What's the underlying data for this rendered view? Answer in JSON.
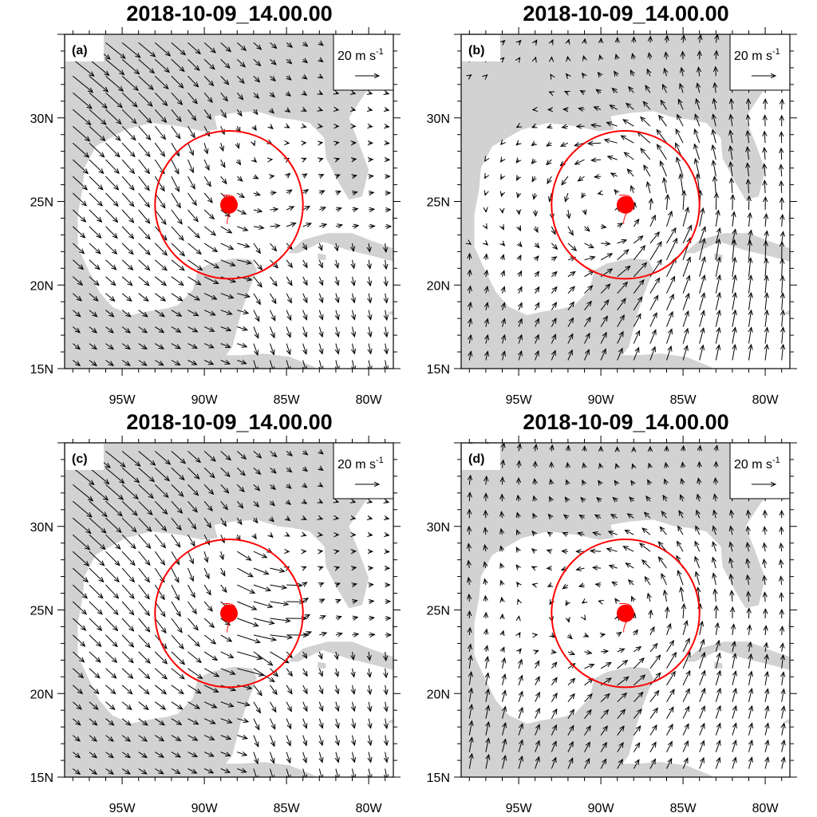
{
  "panels": [
    {
      "title": "2018-10-09_14.00.00",
      "label": "(a)",
      "ref_vector": "20 m s",
      "ref_exp": "-1",
      "flow": "a"
    },
    {
      "title": "2018-10-09_14.00.00",
      "label": "(b)",
      "ref_vector": "20 m s",
      "ref_exp": "-1",
      "flow": "b"
    },
    {
      "title": "2018-10-09_14.00.00",
      "label": "(c)",
      "ref_vector": "20 m s",
      "ref_exp": "-1",
      "flow": "c"
    },
    {
      "title": "2018-10-09_14.00.00",
      "label": "(d)",
      "ref_vector": "20 m s",
      "ref_exp": "-1",
      "flow": "d"
    }
  ],
  "axes": {
    "y_ticks": [
      "30N",
      "25N",
      "20N",
      "15N"
    ],
    "y_values": [
      30,
      25,
      20,
      15
    ],
    "x_ticks": [
      "95W",
      "90W",
      "85W",
      "80W"
    ],
    "x_values": [
      -95,
      -90,
      -85,
      -80
    ],
    "lon_range": [
      -98.5,
      -78.5
    ],
    "lat_range": [
      15,
      35
    ]
  },
  "storm": {
    "lon": -88.5,
    "lat": 24.8,
    "circle_radius_deg": 4.5
  },
  "colors": {
    "land": "#d2d2d2",
    "storm": "#ff0000",
    "vector": "#000000",
    "frame": "#000000"
  }
}
